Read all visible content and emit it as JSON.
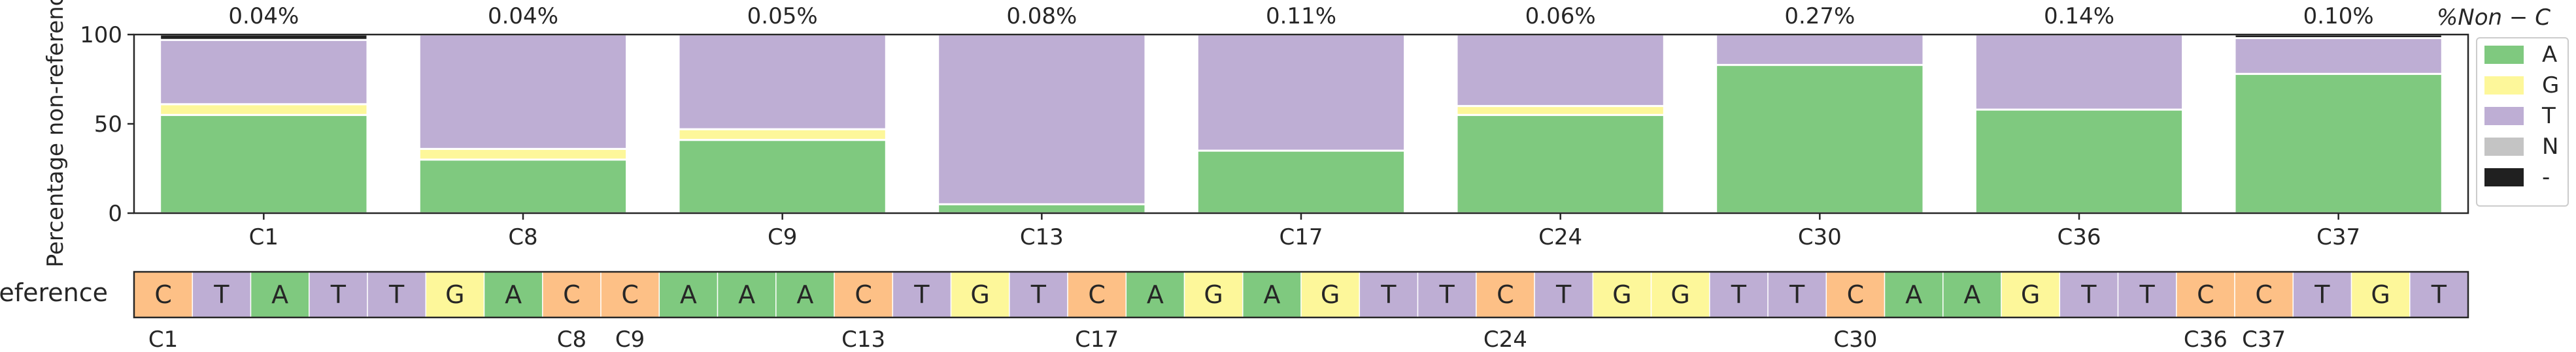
{
  "chart_data": [
    {
      "type": "bar",
      "stacked": true,
      "ylabel": "Percentage non-reference",
      "ylim": [
        0,
        100
      ],
      "yticks": [
        "0",
        "50",
        "100"
      ],
      "categories": [
        "C1",
        "C8",
        "C9",
        "C13",
        "C17",
        "C24",
        "C30",
        "C36",
        "C37"
      ],
      "top_labels": [
        "0.04%",
        "0.04%",
        "0.05%",
        "0.08%",
        "0.11%",
        "0.06%",
        "0.27%",
        "0.14%",
        "0.10%"
      ],
      "top_labels_header": "%Non − C",
      "series": [
        {
          "name": "A",
          "color": "#7fc97f",
          "values": [
            55,
            30,
            41,
            5,
            35,
            55,
            83,
            58,
            78
          ]
        },
        {
          "name": "G",
          "color": "#fdf79a",
          "values": [
            6,
            6,
            6,
            0,
            0,
            5,
            0,
            0,
            0
          ]
        },
        {
          "name": "T",
          "color": "#beaed4",
          "values": [
            36,
            64,
            53,
            95,
            65,
            40,
            17,
            42,
            20
          ]
        },
        {
          "name": "N",
          "color": "#c4c4c4",
          "values": [
            0,
            0,
            0,
            0,
            0,
            0,
            0,
            0,
            0
          ]
        },
        {
          "name": "-",
          "color": "#202020",
          "values": [
            3,
            0,
            0,
            0,
            0,
            0,
            0,
            0,
            2
          ]
        }
      ],
      "legend": "right",
      "grid": false
    },
    {
      "type": "table",
      "row_label": "Reference",
      "sequence": [
        "C",
        "T",
        "A",
        "T",
        "T",
        "G",
        "A",
        "C",
        "C",
        "A",
        "A",
        "A",
        "C",
        "T",
        "G",
        "T",
        "C",
        "A",
        "G",
        "A",
        "G",
        "T",
        "T",
        "C",
        "T",
        "G",
        "G",
        "T",
        "T",
        "C",
        "A",
        "A",
        "G",
        "T",
        "T",
        "C",
        "C",
        "T",
        "G",
        "T"
      ],
      "base_colors": {
        "A": "#7fc97f",
        "C": "#fdc086",
        "G": "#fdf79a",
        "T": "#beaed4"
      },
      "position_markers": [
        {
          "index": 0,
          "label": "C1"
        },
        {
          "index": 7,
          "label": "C8"
        },
        {
          "index": 8,
          "label": "C9"
        },
        {
          "index": 12,
          "label": "C13"
        },
        {
          "index": 16,
          "label": "C17"
        },
        {
          "index": 23,
          "label": "C24"
        },
        {
          "index": 29,
          "label": "C30"
        },
        {
          "index": 35,
          "label": "C36"
        },
        {
          "index": 36,
          "label": "C37"
        }
      ]
    }
  ]
}
